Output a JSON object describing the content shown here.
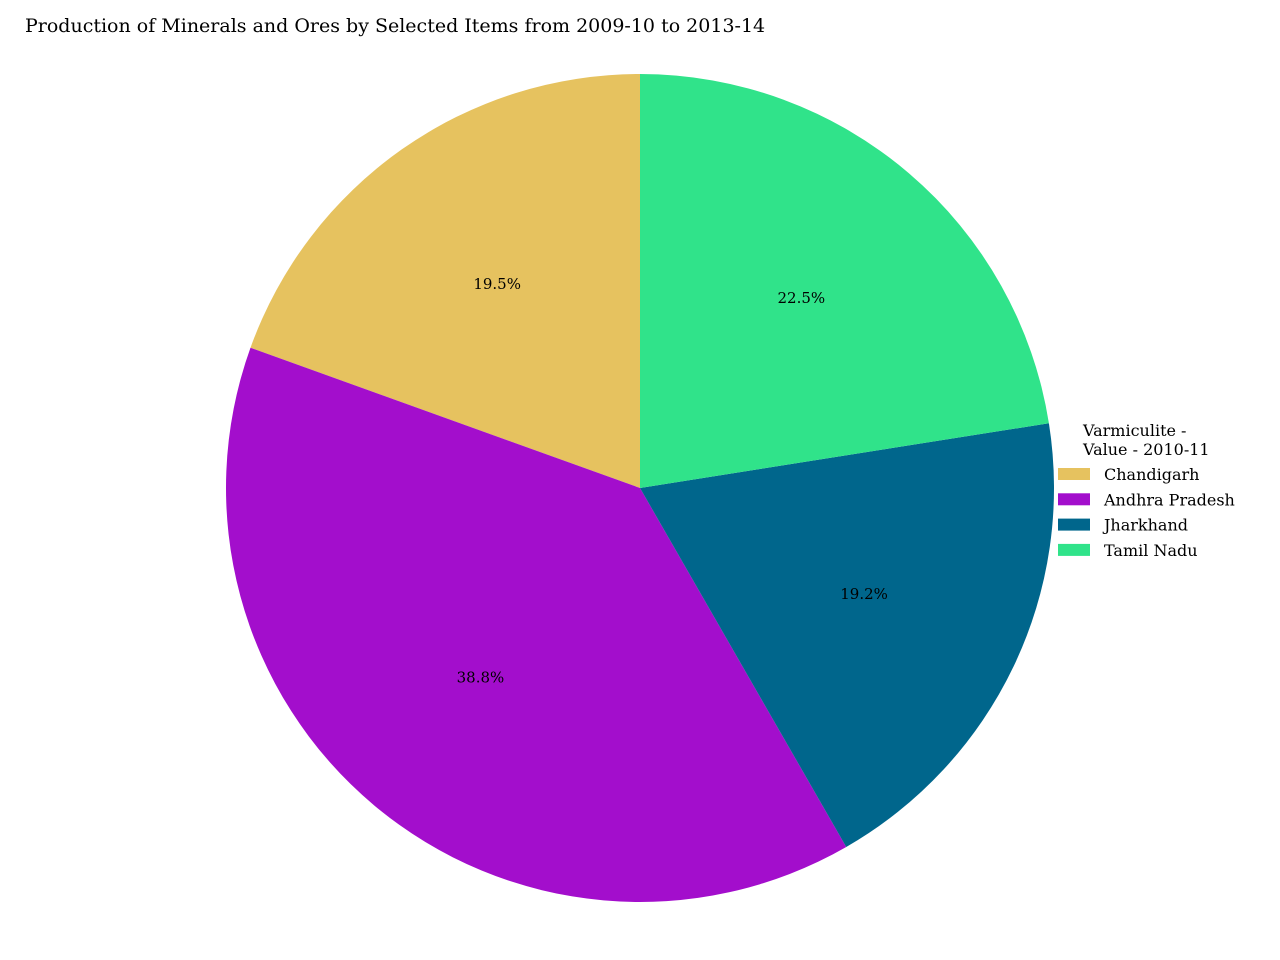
{
  "chart_data": {
    "type": "pie",
    "title": "Production of Minerals and Ores by Selected Items from 2009-10 to 2013-14",
    "legend": {
      "title_lines": [
        "Varmiculite -",
        "Value - 2010-11"
      ],
      "placement": "center-right"
    },
    "start_angle_deg": 90,
    "direction": "counterclockwise",
    "slices": [
      {
        "label": "Chandigarh",
        "percent": 19.5,
        "value_label": "19.5%",
        "color": "#e6c25f"
      },
      {
        "label": "Andhra Pradesh",
        "percent": 38.8,
        "value_label": "38.8%",
        "color": "#a30ecc"
      },
      {
        "label": "Jharkhand",
        "percent": 19.2,
        "value_label": "19.2%",
        "color": "#00668c"
      },
      {
        "label": "Tamil Nadu",
        "percent": 22.5,
        "value_label": "22.5%",
        "color": "#30e38a"
      }
    ]
  }
}
